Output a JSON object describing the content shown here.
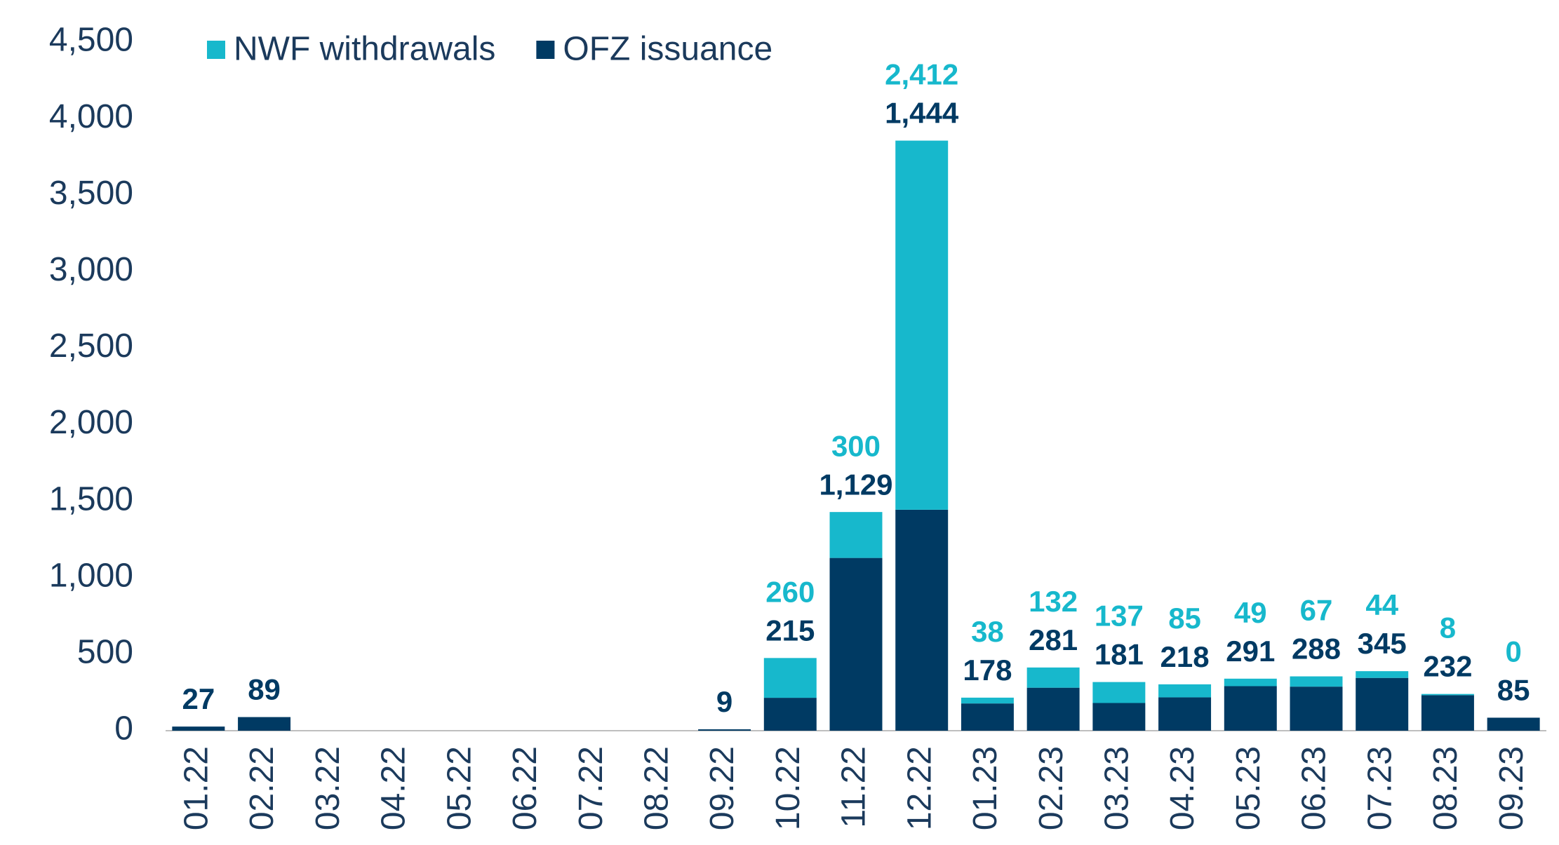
{
  "chart_data": {
    "type": "stacked_bar",
    "categories": [
      "01.22",
      "02.22",
      "03.22",
      "04.22",
      "05.22",
      "06.22",
      "07.22",
      "08.22",
      "09.22",
      "10.22",
      "11.22",
      "12.22",
      "01.23",
      "02.23",
      "03.23",
      "04.23",
      "05.23",
      "06.23",
      "07.23",
      "08.23",
      "09.23"
    ],
    "series": [
      {
        "name": "OFZ issuance",
        "color": "#003a63",
        "values": [
          27,
          89,
          null,
          null,
          null,
          null,
          null,
          null,
          9,
          215,
          1129,
          1444,
          178,
          281,
          181,
          218,
          291,
          288,
          345,
          232,
          85
        ],
        "value_labels": [
          "27",
          "89",
          null,
          null,
          null,
          null,
          null,
          null,
          "9",
          "215",
          "1,129",
          "1,444",
          "178",
          "281",
          "181",
          "218",
          "291",
          "288",
          "345",
          "232",
          "85"
        ]
      },
      {
        "name": "NWF withdrawals",
        "color": "#17b8cc",
        "values": [
          null,
          null,
          null,
          null,
          null,
          null,
          null,
          null,
          null,
          260,
          300,
          2412,
          38,
          132,
          137,
          85,
          49,
          67,
          44,
          8,
          0
        ],
        "value_labels": [
          null,
          null,
          null,
          null,
          null,
          null,
          null,
          null,
          null,
          "260",
          "300",
          "2,412",
          "38",
          "132",
          "137",
          "85",
          "49",
          "67",
          "44",
          "8",
          "0"
        ]
      }
    ],
    "ylim": [
      0,
      4500
    ],
    "yticks": [
      0,
      500,
      {
        "value": 1000,
        "label": "1,000"
      },
      {
        "value": 1500,
        "label": "1,500"
      },
      {
        "value": 2000,
        "label": "2,000"
      },
      {
        "value": 2500,
        "label": "2,500"
      },
      {
        "value": 3000,
        "label": "3,000"
      },
      {
        "value": 3500,
        "label": "3,500"
      },
      {
        "value": 4000,
        "label": "4,000"
      },
      {
        "value": 4500,
        "label": "4,500"
      }
    ],
    "grid": false,
    "legend": "upper left"
  }
}
